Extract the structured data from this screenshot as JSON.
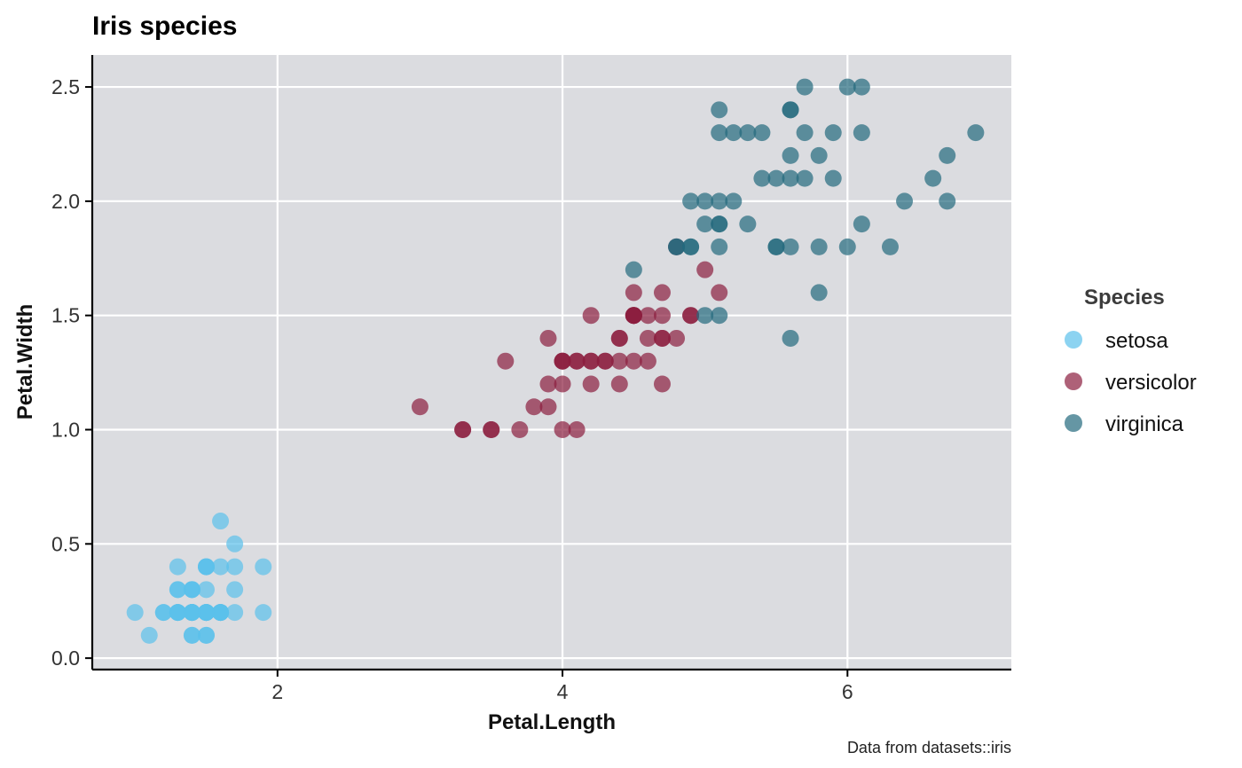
{
  "chart_data": {
    "type": "scatter",
    "title": "Iris species",
    "xlabel": "Petal.Length",
    "ylabel": "Petal.Width",
    "caption": "Data from datasets::iris",
    "xlim": [
      0.7,
      7.15
    ],
    "ylim": [
      -0.05,
      2.64
    ],
    "xticks": [
      2,
      4,
      6
    ],
    "yticks": [
      0.0,
      0.5,
      1.0,
      1.5,
      2.0,
      2.5
    ],
    "xtick_labels": [
      "2",
      "4",
      "6"
    ],
    "ytick_labels": [
      "0.0",
      "0.5",
      "1.0",
      "1.5",
      "2.0",
      "2.5"
    ],
    "grid": true,
    "legend_title": "Species",
    "legend_position": "right",
    "series": [
      {
        "name": "setosa",
        "color": "#5bc0eb",
        "points": [
          [
            1.4,
            0.2
          ],
          [
            1.4,
            0.2
          ],
          [
            1.3,
            0.2
          ],
          [
            1.5,
            0.2
          ],
          [
            1.4,
            0.2
          ],
          [
            1.7,
            0.4
          ],
          [
            1.4,
            0.3
          ],
          [
            1.5,
            0.2
          ],
          [
            1.4,
            0.2
          ],
          [
            1.5,
            0.1
          ],
          [
            1.5,
            0.2
          ],
          [
            1.6,
            0.2
          ],
          [
            1.4,
            0.1
          ],
          [
            1.1,
            0.1
          ],
          [
            1.2,
            0.2
          ],
          [
            1.5,
            0.4
          ],
          [
            1.3,
            0.4
          ],
          [
            1.4,
            0.3
          ],
          [
            1.7,
            0.3
          ],
          [
            1.5,
            0.3
          ],
          [
            1.7,
            0.2
          ],
          [
            1.5,
            0.4
          ],
          [
            1.0,
            0.2
          ],
          [
            1.7,
            0.5
          ],
          [
            1.9,
            0.2
          ],
          [
            1.6,
            0.2
          ],
          [
            1.6,
            0.4
          ],
          [
            1.5,
            0.2
          ],
          [
            1.4,
            0.2
          ],
          [
            1.6,
            0.2
          ],
          [
            1.6,
            0.2
          ],
          [
            1.5,
            0.4
          ],
          [
            1.5,
            0.1
          ],
          [
            1.4,
            0.2
          ],
          [
            1.5,
            0.2
          ],
          [
            1.2,
            0.2
          ],
          [
            1.3,
            0.2
          ],
          [
            1.4,
            0.1
          ],
          [
            1.3,
            0.2
          ],
          [
            1.5,
            0.2
          ],
          [
            1.3,
            0.3
          ],
          [
            1.3,
            0.3
          ],
          [
            1.3,
            0.2
          ],
          [
            1.6,
            0.6
          ],
          [
            1.9,
            0.4
          ],
          [
            1.4,
            0.3
          ],
          [
            1.6,
            0.2
          ],
          [
            1.4,
            0.2
          ],
          [
            1.5,
            0.2
          ],
          [
            1.4,
            0.2
          ]
        ]
      },
      {
        "name": "versicolor",
        "color": "#8b1e3f",
        "points": [
          [
            4.7,
            1.4
          ],
          [
            4.5,
            1.5
          ],
          [
            4.9,
            1.5
          ],
          [
            4.0,
            1.3
          ],
          [
            4.6,
            1.5
          ],
          [
            4.5,
            1.3
          ],
          [
            4.7,
            1.6
          ],
          [
            3.3,
            1.0
          ],
          [
            4.6,
            1.3
          ],
          [
            3.9,
            1.4
          ],
          [
            3.5,
            1.0
          ],
          [
            4.2,
            1.5
          ],
          [
            4.0,
            1.0
          ],
          [
            4.7,
            1.4
          ],
          [
            3.6,
            1.3
          ],
          [
            4.4,
            1.4
          ],
          [
            4.5,
            1.5
          ],
          [
            4.1,
            1.0
          ],
          [
            4.5,
            1.5
          ],
          [
            3.9,
            1.1
          ],
          [
            4.8,
            1.8
          ],
          [
            4.0,
            1.3
          ],
          [
            4.9,
            1.5
          ],
          [
            4.7,
            1.2
          ],
          [
            4.3,
            1.3
          ],
          [
            4.4,
            1.4
          ],
          [
            4.8,
            1.4
          ],
          [
            5.0,
            1.7
          ],
          [
            4.5,
            1.5
          ],
          [
            3.5,
            1.0
          ],
          [
            3.8,
            1.1
          ],
          [
            3.7,
            1.0
          ],
          [
            3.9,
            1.2
          ],
          [
            5.1,
            1.6
          ],
          [
            4.5,
            1.5
          ],
          [
            4.5,
            1.6
          ],
          [
            4.7,
            1.5
          ],
          [
            4.4,
            1.3
          ],
          [
            4.1,
            1.3
          ],
          [
            4.0,
            1.3
          ],
          [
            4.4,
            1.2
          ],
          [
            4.6,
            1.4
          ],
          [
            4.0,
            1.2
          ],
          [
            3.3,
            1.0
          ],
          [
            4.2,
            1.3
          ],
          [
            4.2,
            1.2
          ],
          [
            4.2,
            1.3
          ],
          [
            4.3,
            1.3
          ],
          [
            3.0,
            1.1
          ],
          [
            4.1,
            1.3
          ]
        ]
      },
      {
        "name": "virginica",
        "color": "#246a7e",
        "points": [
          [
            6.0,
            2.5
          ],
          [
            5.1,
            1.9
          ],
          [
            5.9,
            2.1
          ],
          [
            5.6,
            1.8
          ],
          [
            5.8,
            2.2
          ],
          [
            6.6,
            2.1
          ],
          [
            4.5,
            1.7
          ],
          [
            6.3,
            1.8
          ],
          [
            5.8,
            1.8
          ],
          [
            6.1,
            2.5
          ],
          [
            5.1,
            2.0
          ],
          [
            5.3,
            1.9
          ],
          [
            5.5,
            2.1
          ],
          [
            5.0,
            2.0
          ],
          [
            5.1,
            2.4
          ],
          [
            5.3,
            2.3
          ],
          [
            5.5,
            1.8
          ],
          [
            6.7,
            2.2
          ],
          [
            6.9,
            2.3
          ],
          [
            5.0,
            1.5
          ],
          [
            5.7,
            2.3
          ],
          [
            4.9,
            2.0
          ],
          [
            6.7,
            2.0
          ],
          [
            4.9,
            1.8
          ],
          [
            5.7,
            2.1
          ],
          [
            6.0,
            1.8
          ],
          [
            4.8,
            1.8
          ],
          [
            4.9,
            1.8
          ],
          [
            5.6,
            2.1
          ],
          [
            5.8,
            1.6
          ],
          [
            6.1,
            1.9
          ],
          [
            6.4,
            2.0
          ],
          [
            5.6,
            2.2
          ],
          [
            5.1,
            1.5
          ],
          [
            5.6,
            1.4
          ],
          [
            6.1,
            2.3
          ],
          [
            5.6,
            2.4
          ],
          [
            5.5,
            1.8
          ],
          [
            4.8,
            1.8
          ],
          [
            5.4,
            2.1
          ],
          [
            5.6,
            2.4
          ],
          [
            5.1,
            2.3
          ],
          [
            5.1,
            1.9
          ],
          [
            5.9,
            2.3
          ],
          [
            5.7,
            2.5
          ],
          [
            5.2,
            2.3
          ],
          [
            5.0,
            1.9
          ],
          [
            5.2,
            2.0
          ],
          [
            5.4,
            2.3
          ],
          [
            5.1,
            1.8
          ]
        ]
      }
    ]
  }
}
